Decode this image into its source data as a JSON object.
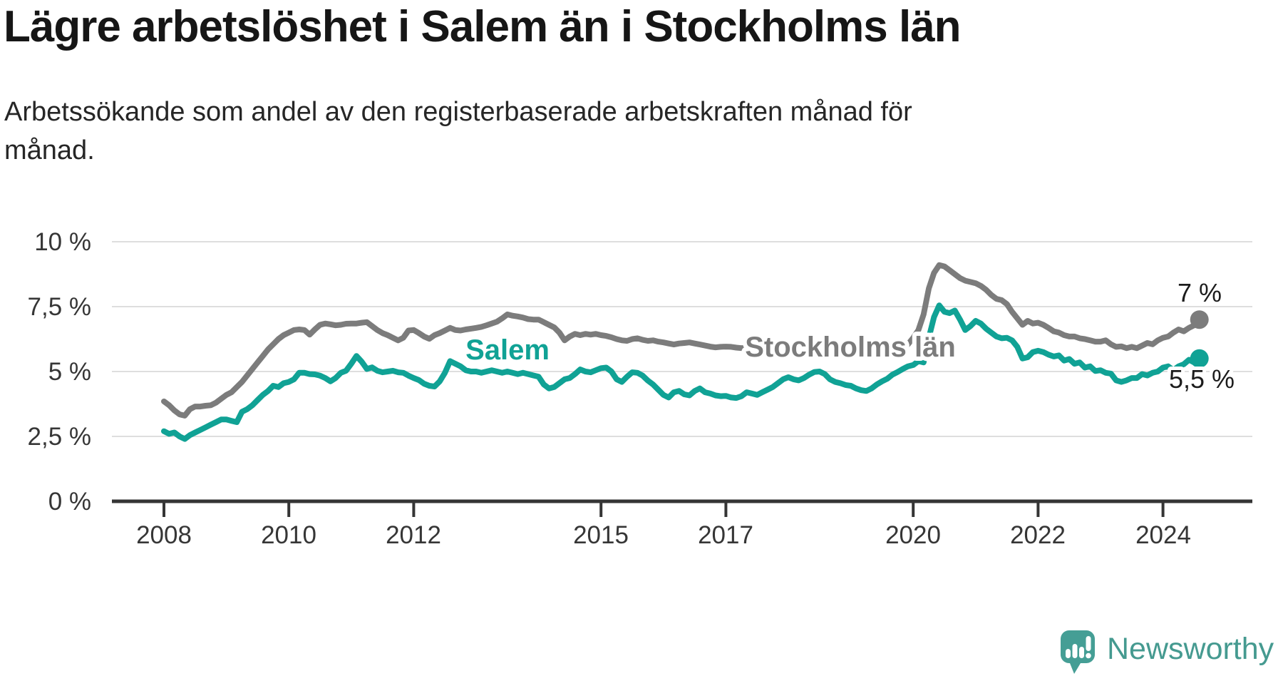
{
  "title": "Lägre arbetslöshet i Salem än i Stockholms län",
  "subtitle_lines": [
    "Arbetssökande som andel av den registerbaserade arbetskraften månad för",
    "månad."
  ],
  "footer": {
    "brand_name": "Newsworthy"
  },
  "colors": {
    "salem_line": "#10a295",
    "stockholm_line": "#7c7c7c",
    "gridline": "#dedede",
    "axis": "#353535",
    "tick_text": "#363636",
    "title_text": "#161616",
    "end_label_text": "#1c1c1c",
    "brand_teal": "#459a90"
  },
  "chart_data": {
    "type": "line",
    "title": "Lägre arbetslöshet i Salem än i Stockholms län",
    "subtitle": "Arbetssökande som andel av den registerbaserade arbetskraften månad för månad.",
    "x_unit": "month",
    "x_start": "2008-01",
    "x_end": "2024-08",
    "ylim": [
      0,
      10
    ],
    "grid": true,
    "legend": "inline-labels",
    "y_tick_labels": [
      "10 %",
      "7,5 %",
      "5 %",
      "2,5 %",
      "0 %"
    ],
    "y_tick_values": [
      10,
      7.5,
      5,
      2.5,
      0
    ],
    "x_tick_labels": [
      "2008",
      "2010",
      "2012",
      "2015",
      "2017",
      "2020",
      "2022",
      "2024"
    ],
    "x_tick_years": [
      2008,
      2010,
      2012,
      2015,
      2017,
      2020,
      2022,
      2024
    ],
    "series": [
      {
        "name": "Stockholms län",
        "color": "#7c7c7c",
        "end_label": "7 %",
        "end_value": 7.0,
        "values": [
          3.85,
          3.7,
          3.5,
          3.35,
          3.3,
          3.55,
          3.65,
          3.65,
          3.68,
          3.7,
          3.8,
          3.95,
          4.1,
          4.2,
          4.4,
          4.6,
          4.85,
          5.1,
          5.35,
          5.6,
          5.85,
          6.05,
          6.25,
          6.4,
          6.5,
          6.6,
          6.62,
          6.6,
          6.42,
          6.62,
          6.8,
          6.85,
          6.82,
          6.78,
          6.8,
          6.84,
          6.85,
          6.85,
          6.88,
          6.9,
          6.75,
          6.6,
          6.48,
          6.4,
          6.3,
          6.2,
          6.3,
          6.58,
          6.6,
          6.48,
          6.35,
          6.26,
          6.4,
          6.48,
          6.58,
          6.68,
          6.6,
          6.58,
          6.62,
          6.65,
          6.68,
          6.72,
          6.78,
          6.85,
          6.92,
          7.05,
          7.2,
          7.15,
          7.12,
          7.08,
          7.02,
          7.0,
          7.0,
          6.9,
          6.8,
          6.7,
          6.5,
          6.2,
          6.35,
          6.45,
          6.4,
          6.45,
          6.42,
          6.45,
          6.4,
          6.37,
          6.32,
          6.25,
          6.2,
          6.18,
          6.25,
          6.28,
          6.22,
          6.18,
          6.2,
          6.15,
          6.12,
          6.08,
          6.04,
          6.08,
          6.1,
          6.12,
          6.08,
          6.04,
          6.0,
          5.96,
          5.93,
          5.95,
          5.96,
          5.95,
          5.92,
          5.9,
          5.92,
          5.9,
          5.88,
          5.9,
          5.92,
          5.9,
          5.88,
          5.9,
          5.92,
          5.9,
          5.88,
          5.9,
          5.92,
          5.9,
          5.88,
          5.86,
          5.88,
          5.9,
          5.88,
          5.9,
          5.88,
          5.86,
          5.88,
          5.9,
          5.92,
          5.95,
          5.93,
          5.95,
          5.98,
          6.0,
          6.02,
          6.05,
          6.3,
          6.6,
          7.2,
          8.2,
          8.8,
          9.1,
          9.05,
          8.9,
          8.75,
          8.6,
          8.5,
          8.45,
          8.4,
          8.3,
          8.15,
          7.95,
          7.8,
          7.75,
          7.6,
          7.3,
          7.05,
          6.8,
          6.95,
          6.85,
          6.88,
          6.8,
          6.68,
          6.55,
          6.5,
          6.4,
          6.35,
          6.35,
          6.28,
          6.25,
          6.2,
          6.15,
          6.15,
          6.2,
          6.05,
          5.95,
          5.97,
          5.9,
          5.95,
          5.9,
          6.0,
          6.1,
          6.05,
          6.2,
          6.3,
          6.35,
          6.5,
          6.62,
          6.55,
          6.68,
          6.78,
          7.0
        ]
      },
      {
        "name": "Salem",
        "color": "#10a295",
        "end_label": "5,5 %",
        "end_value": 5.5,
        "values": [
          2.7,
          2.6,
          2.65,
          2.5,
          2.4,
          2.55,
          2.65,
          2.75,
          2.85,
          2.95,
          3.05,
          3.15,
          3.15,
          3.1,
          3.05,
          3.45,
          3.55,
          3.7,
          3.9,
          4.1,
          4.25,
          4.45,
          4.4,
          4.55,
          4.6,
          4.7,
          4.95,
          4.95,
          4.9,
          4.89,
          4.84,
          4.75,
          4.62,
          4.75,
          4.95,
          5.03,
          5.3,
          5.6,
          5.38,
          5.1,
          5.16,
          5.03,
          4.97,
          5.0,
          5.03,
          4.97,
          4.95,
          4.84,
          4.75,
          4.67,
          4.53,
          4.45,
          4.42,
          4.62,
          4.95,
          5.4,
          5.3,
          5.2,
          5.05,
          5.0,
          5.0,
          4.95,
          5.0,
          5.05,
          5.0,
          4.95,
          5.0,
          4.95,
          4.9,
          4.95,
          4.9,
          4.85,
          4.8,
          4.5,
          4.35,
          4.4,
          4.55,
          4.7,
          4.75,
          4.9,
          5.08,
          5.0,
          4.97,
          5.05,
          5.13,
          5.15,
          5.0,
          4.7,
          4.6,
          4.8,
          4.97,
          4.95,
          4.84,
          4.65,
          4.5,
          4.3,
          4.1,
          4.0,
          4.2,
          4.25,
          4.12,
          4.08,
          4.25,
          4.35,
          4.2,
          4.15,
          4.08,
          4.05,
          4.06,
          4.0,
          3.98,
          4.05,
          4.2,
          4.15,
          4.1,
          4.2,
          4.3,
          4.4,
          4.55,
          4.7,
          4.78,
          4.7,
          4.66,
          4.75,
          4.88,
          4.98,
          5.0,
          4.9,
          4.7,
          4.6,
          4.55,
          4.48,
          4.45,
          4.35,
          4.28,
          4.25,
          4.35,
          4.5,
          4.62,
          4.72,
          4.88,
          4.98,
          5.1,
          5.2,
          5.25,
          5.4,
          5.35,
          6.3,
          7.1,
          7.55,
          7.3,
          7.25,
          7.35,
          7.0,
          6.6,
          6.75,
          6.95,
          6.85,
          6.65,
          6.5,
          6.35,
          6.28,
          6.3,
          6.2,
          5.95,
          5.5,
          5.55,
          5.75,
          5.8,
          5.75,
          5.65,
          5.58,
          5.62,
          5.42,
          5.48,
          5.3,
          5.35,
          5.15,
          5.2,
          5.02,
          5.05,
          4.95,
          4.92,
          4.66,
          4.6,
          4.66,
          4.75,
          4.75,
          4.9,
          4.85,
          4.95,
          5.0,
          5.15,
          5.2,
          5.05,
          5.2,
          5.28,
          5.45,
          5.35,
          5.5
        ]
      }
    ]
  }
}
